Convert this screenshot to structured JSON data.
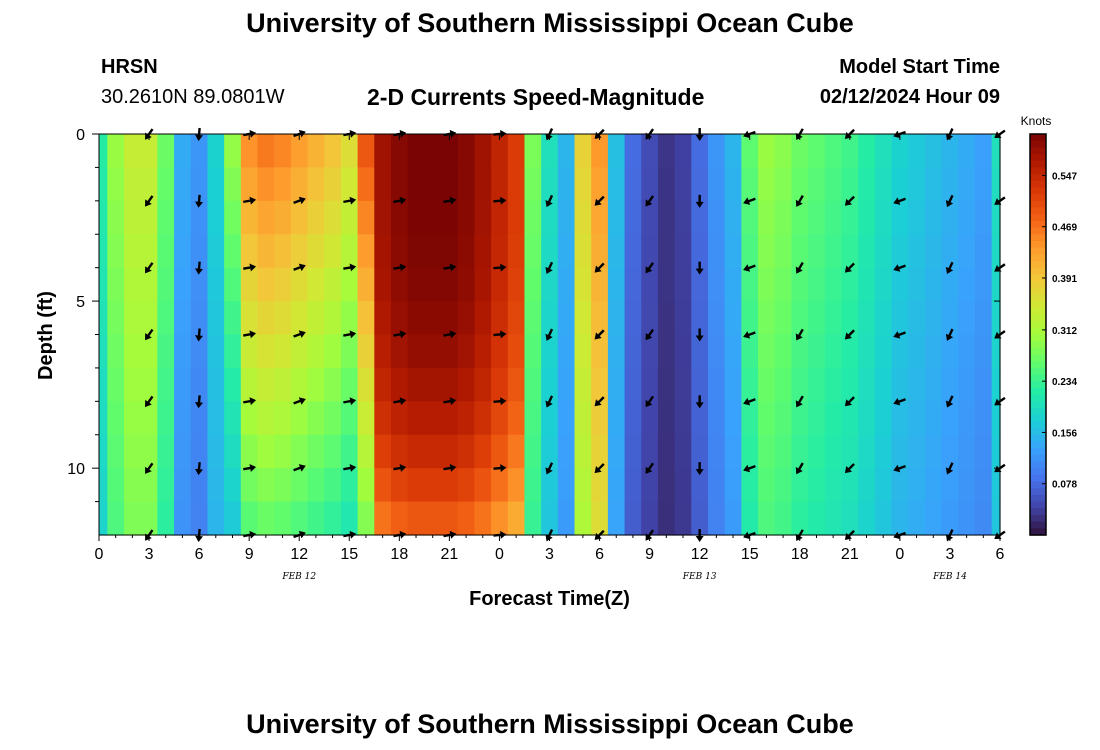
{
  "header": {
    "title": "University of Southern Mississippi Ocean Cube",
    "station": "HRSN",
    "coords": "30.2610N  89.0801W",
    "subtitle": "2-D Currents Speed-Magnitude",
    "model_start_label": "Model Start Time",
    "model_start_value": "02/12/2024 Hour 09"
  },
  "footer": {
    "title": "University of Southern Mississippi Ocean Cube"
  },
  "chart_data": {
    "type": "heatmap",
    "title": "2-D Currents Speed-Magnitude",
    "xlabel": "Forecast Time(Z)",
    "ylabel": "Depth (ft)",
    "x_range_hours": [
      0,
      54
    ],
    "y_range_ft": [
      0,
      12
    ],
    "x_ticks": [
      "0",
      "3",
      "6",
      "9",
      "12",
      "15",
      "18",
      "21",
      "0",
      "3",
      "6",
      "9",
      "12",
      "15",
      "18",
      "21",
      "0",
      "3",
      "6"
    ],
    "y_ticks": [
      "0",
      "5",
      "10"
    ],
    "y_tick_values": [
      0,
      5,
      10
    ],
    "date_labels": [
      {
        "label": "FEB 12",
        "hour": 12
      },
      {
        "label": "FEB 13",
        "hour": 36
      },
      {
        "label": "FEB 14",
        "hour": 51
      }
    ],
    "colorbar": {
      "unit": "Knots",
      "ticks": [
        "0.547",
        "0.469",
        "0.391",
        "0.312",
        "0.234",
        "0.156",
        "0.078"
      ],
      "tick_values": [
        0.547,
        0.469,
        0.391,
        0.312,
        0.234,
        0.156,
        0.078
      ],
      "range": [
        0.0,
        0.61
      ],
      "colors": [
        "#30123b",
        "#4145ab",
        "#4675ed",
        "#39a2fc",
        "#1bcfd4",
        "#24eca6",
        "#61fc6c",
        "#a4fc3b",
        "#d1e834",
        "#f3c63a",
        "#fe9b2d",
        "#f36315",
        "#d93806",
        "#b11901",
        "#7a0403"
      ]
    },
    "time_hours": [
      0,
      1,
      2,
      3,
      4,
      5,
      6,
      7,
      8,
      9,
      10,
      11,
      12,
      13,
      14,
      15,
      16,
      17,
      18,
      19,
      20,
      21,
      22,
      23,
      24,
      25,
      26,
      27,
      28,
      29,
      30,
      31,
      32,
      33,
      34,
      35,
      36,
      37,
      38,
      39,
      40,
      41,
      42,
      43,
      44,
      45,
      46,
      47,
      48,
      49,
      50,
      51,
      52,
      53,
      54
    ],
    "surface_speed_knots": [
      0.22,
      0.3,
      0.34,
      0.34,
      0.27,
      0.14,
      0.12,
      0.18,
      0.3,
      0.45,
      0.47,
      0.46,
      0.44,
      0.42,
      0.4,
      0.37,
      0.5,
      0.58,
      0.6,
      0.61,
      0.61,
      0.61,
      0.6,
      0.58,
      0.55,
      0.52,
      0.28,
      0.2,
      0.15,
      0.38,
      0.44,
      0.16,
      0.08,
      0.05,
      0.03,
      0.04,
      0.08,
      0.12,
      0.15,
      0.26,
      0.3,
      0.29,
      0.27,
      0.26,
      0.25,
      0.24,
      0.22,
      0.2,
      0.18,
      0.17,
      0.16,
      0.15,
      0.14,
      0.13,
      0.2
    ],
    "vector_times_hours": [
      3,
      6,
      9,
      12,
      15,
      18,
      21,
      24,
      27,
      30,
      33,
      36,
      39,
      42,
      45,
      48,
      51,
      54
    ],
    "vector_depths_ft": [
      0,
      2,
      4,
      6,
      8,
      10,
      12
    ],
    "vector_directions_deg": [
      215,
      185,
      80,
      70,
      80,
      80,
      80,
      85,
      205,
      225,
      215,
      180,
      250,
      210,
      225,
      250,
      205,
      235
    ]
  }
}
